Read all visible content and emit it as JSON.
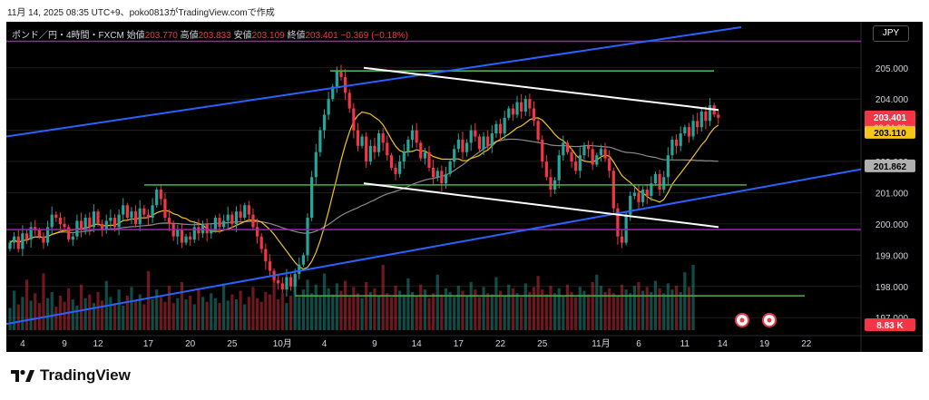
{
  "caption": "11月 14, 2025 08:35 UTC+9、poko0813がTradingView.comで作成",
  "header": {
    "symbol": "ポンド／円・4時間・FXCM",
    "open_label": "始値",
    "open": "203.770",
    "high_label": "高値",
    "high": "203.833",
    "low_label": "安値",
    "low": "203.109",
    "close_label": "終値",
    "close": "203.401",
    "change": "−0.369 (−0.18%)"
  },
  "currency_button": "JPY",
  "brand": "TradingView",
  "colors": {
    "background": "#000000",
    "up_candle": "#26a69a",
    "down_candle": "#f23645",
    "trendline_blue": "#2962ff",
    "support_green": "#4caf50",
    "level_purple": "#9c27b0",
    "channel_white": "#ffffff",
    "ma_fast": "#f5c518",
    "ma_slow": "#8a8a8a"
  },
  "chart_data": {
    "type": "candlestick",
    "y_ticks": [
      "205.000",
      "204.000",
      "203.000",
      "202.000",
      "201.000",
      "200.000",
      "199.000",
      "198.000",
      "197.000"
    ],
    "ylim": [
      196.6,
      206.3
    ],
    "x_ticks": [
      "4",
      "9",
      "12",
      "17",
      "20",
      "25",
      "10月",
      "4",
      "9",
      "14",
      "17",
      "22",
      "25",
      "11月",
      "6",
      "11",
      "14",
      "19",
      "22"
    ],
    "price_labels": {
      "last_price": "203.401",
      "countdown": "02:24:03",
      "ma_fast": "203.110",
      "ma_slow": "201.862",
      "volume": "8.83 K"
    },
    "series": [
      {
        "name": "close",
        "values": [
          199.4,
          199.6,
          199.2,
          199.7,
          199.5,
          199.9,
          199.8,
          199.6,
          199.4,
          199.9,
          200.3,
          200.2,
          200.0,
          199.9,
          199.5,
          199.6,
          200.1,
          199.8,
          200.2,
          199.9,
          200.4,
          200.0,
          199.8,
          200.1,
          200.2,
          199.9,
          200.3,
          200.6,
          200.2,
          200.4,
          200.0,
          200.5,
          200.3,
          200.2,
          200.6,
          201.1,
          200.8,
          200.2,
          200.0,
          199.6,
          199.8,
          199.4,
          199.6,
          199.5,
          199.9,
          199.7,
          200.0,
          199.7,
          199.8,
          200.2,
          199.9,
          200.1,
          200.3,
          200.0,
          200.4,
          200.2,
          200.6,
          200.3,
          199.9,
          199.6,
          199.2,
          198.8,
          198.5,
          198.2,
          198.1,
          197.9,
          198.3,
          198.0,
          198.4,
          198.7,
          199.0,
          200.2,
          201.5,
          202.3,
          203.0,
          203.5,
          204.0,
          204.4,
          204.9,
          204.7,
          204.2,
          203.7,
          203.0,
          202.5,
          202.8,
          202.0,
          202.5,
          202.3,
          202.9,
          202.6,
          202.2,
          201.8,
          201.6,
          202.0,
          202.3,
          202.7,
          203.0,
          202.6,
          202.1,
          202.3,
          201.8,
          201.5,
          201.7,
          201.3,
          201.6,
          202.0,
          202.4,
          202.7,
          202.3,
          202.6,
          203.0,
          202.8,
          202.4,
          202.8,
          202.5,
          202.9,
          203.2,
          202.9,
          203.4,
          203.7,
          203.5,
          203.9,
          203.6,
          204.0,
          203.7,
          203.3,
          202.7,
          202.0,
          201.5,
          201.1,
          201.4,
          202.2,
          202.6,
          202.3,
          202.0,
          201.7,
          202.2,
          202.5,
          202.4,
          201.9,
          202.2,
          202.4,
          202.1,
          201.7,
          200.5,
          199.6,
          199.4,
          200.3,
          200.9,
          201.0,
          200.7,
          201.1,
          200.9,
          201.3,
          201.6,
          201.1,
          201.5,
          202.2,
          202.7,
          202.5,
          202.9,
          203.1,
          202.8,
          203.3,
          203.1,
          203.6,
          203.3,
          203.8,
          203.5,
          203.401
        ]
      },
      {
        "name": "volume",
        "values": [
          1.8,
          3.2,
          2.1,
          2.7,
          4.1,
          2.4,
          3.0,
          2.2,
          4.6,
          2.6,
          3.1,
          1.9,
          2.8,
          2.3,
          3.4,
          2.5,
          2.0,
          3.7,
          2.6,
          2.9,
          2.2,
          3.1,
          2.4,
          4.0,
          2.7,
          2.2,
          3.3,
          2.0,
          2.8,
          3.5,
          2.4,
          2.9,
          2.1,
          4.8,
          2.5,
          3.3,
          2.7,
          2.3,
          3.6,
          2.2,
          2.6,
          3.9,
          2.5,
          2.8,
          2.1,
          3.4,
          2.7,
          2.3,
          3.0,
          2.6,
          2.2,
          3.8,
          2.4,
          2.9,
          2.5,
          3.2,
          2.1,
          2.7,
          3.5,
          2.6,
          2.3,
          3.1,
          2.9,
          4.4,
          2.5,
          3.0,
          2.2,
          2.8,
          3.6,
          2.7,
          3.3,
          4.1,
          3.0,
          3.7,
          2.8,
          4.6,
          3.4,
          2.9,
          3.8,
          3.2,
          4.0,
          2.7,
          3.5,
          3.0,
          2.6,
          3.9,
          3.1,
          3.4,
          2.8,
          5.3,
          3.0,
          2.7,
          3.6,
          3.2,
          2.9,
          4.2,
          3.1,
          2.8,
          3.7,
          3.3,
          2.6,
          3.0,
          4.5,
          2.9,
          3.4,
          3.1,
          2.7,
          3.6,
          3.2,
          2.8,
          3.9,
          3.3,
          2.7,
          3.5,
          3.0,
          2.9,
          4.3,
          3.2,
          2.8,
          3.7,
          3.4,
          3.0,
          2.7,
          3.8,
          3.1,
          3.5,
          4.4,
          3.3,
          2.9,
          3.6,
          3.0,
          3.4,
          2.8,
          3.7,
          3.1,
          2.7,
          3.5,
          3.2,
          2.9,
          3.9,
          4.5,
          3.6,
          3.1,
          3.4,
          3.0,
          2.8,
          3.7,
          3.3,
          3.0,
          3.6,
          3.9,
          3.2,
          3.5,
          3.1,
          4.0,
          3.4,
          3.0,
          3.8,
          3.3,
          3.6,
          3.1,
          4.7,
          3.5,
          5.3
        ]
      }
    ]
  }
}
